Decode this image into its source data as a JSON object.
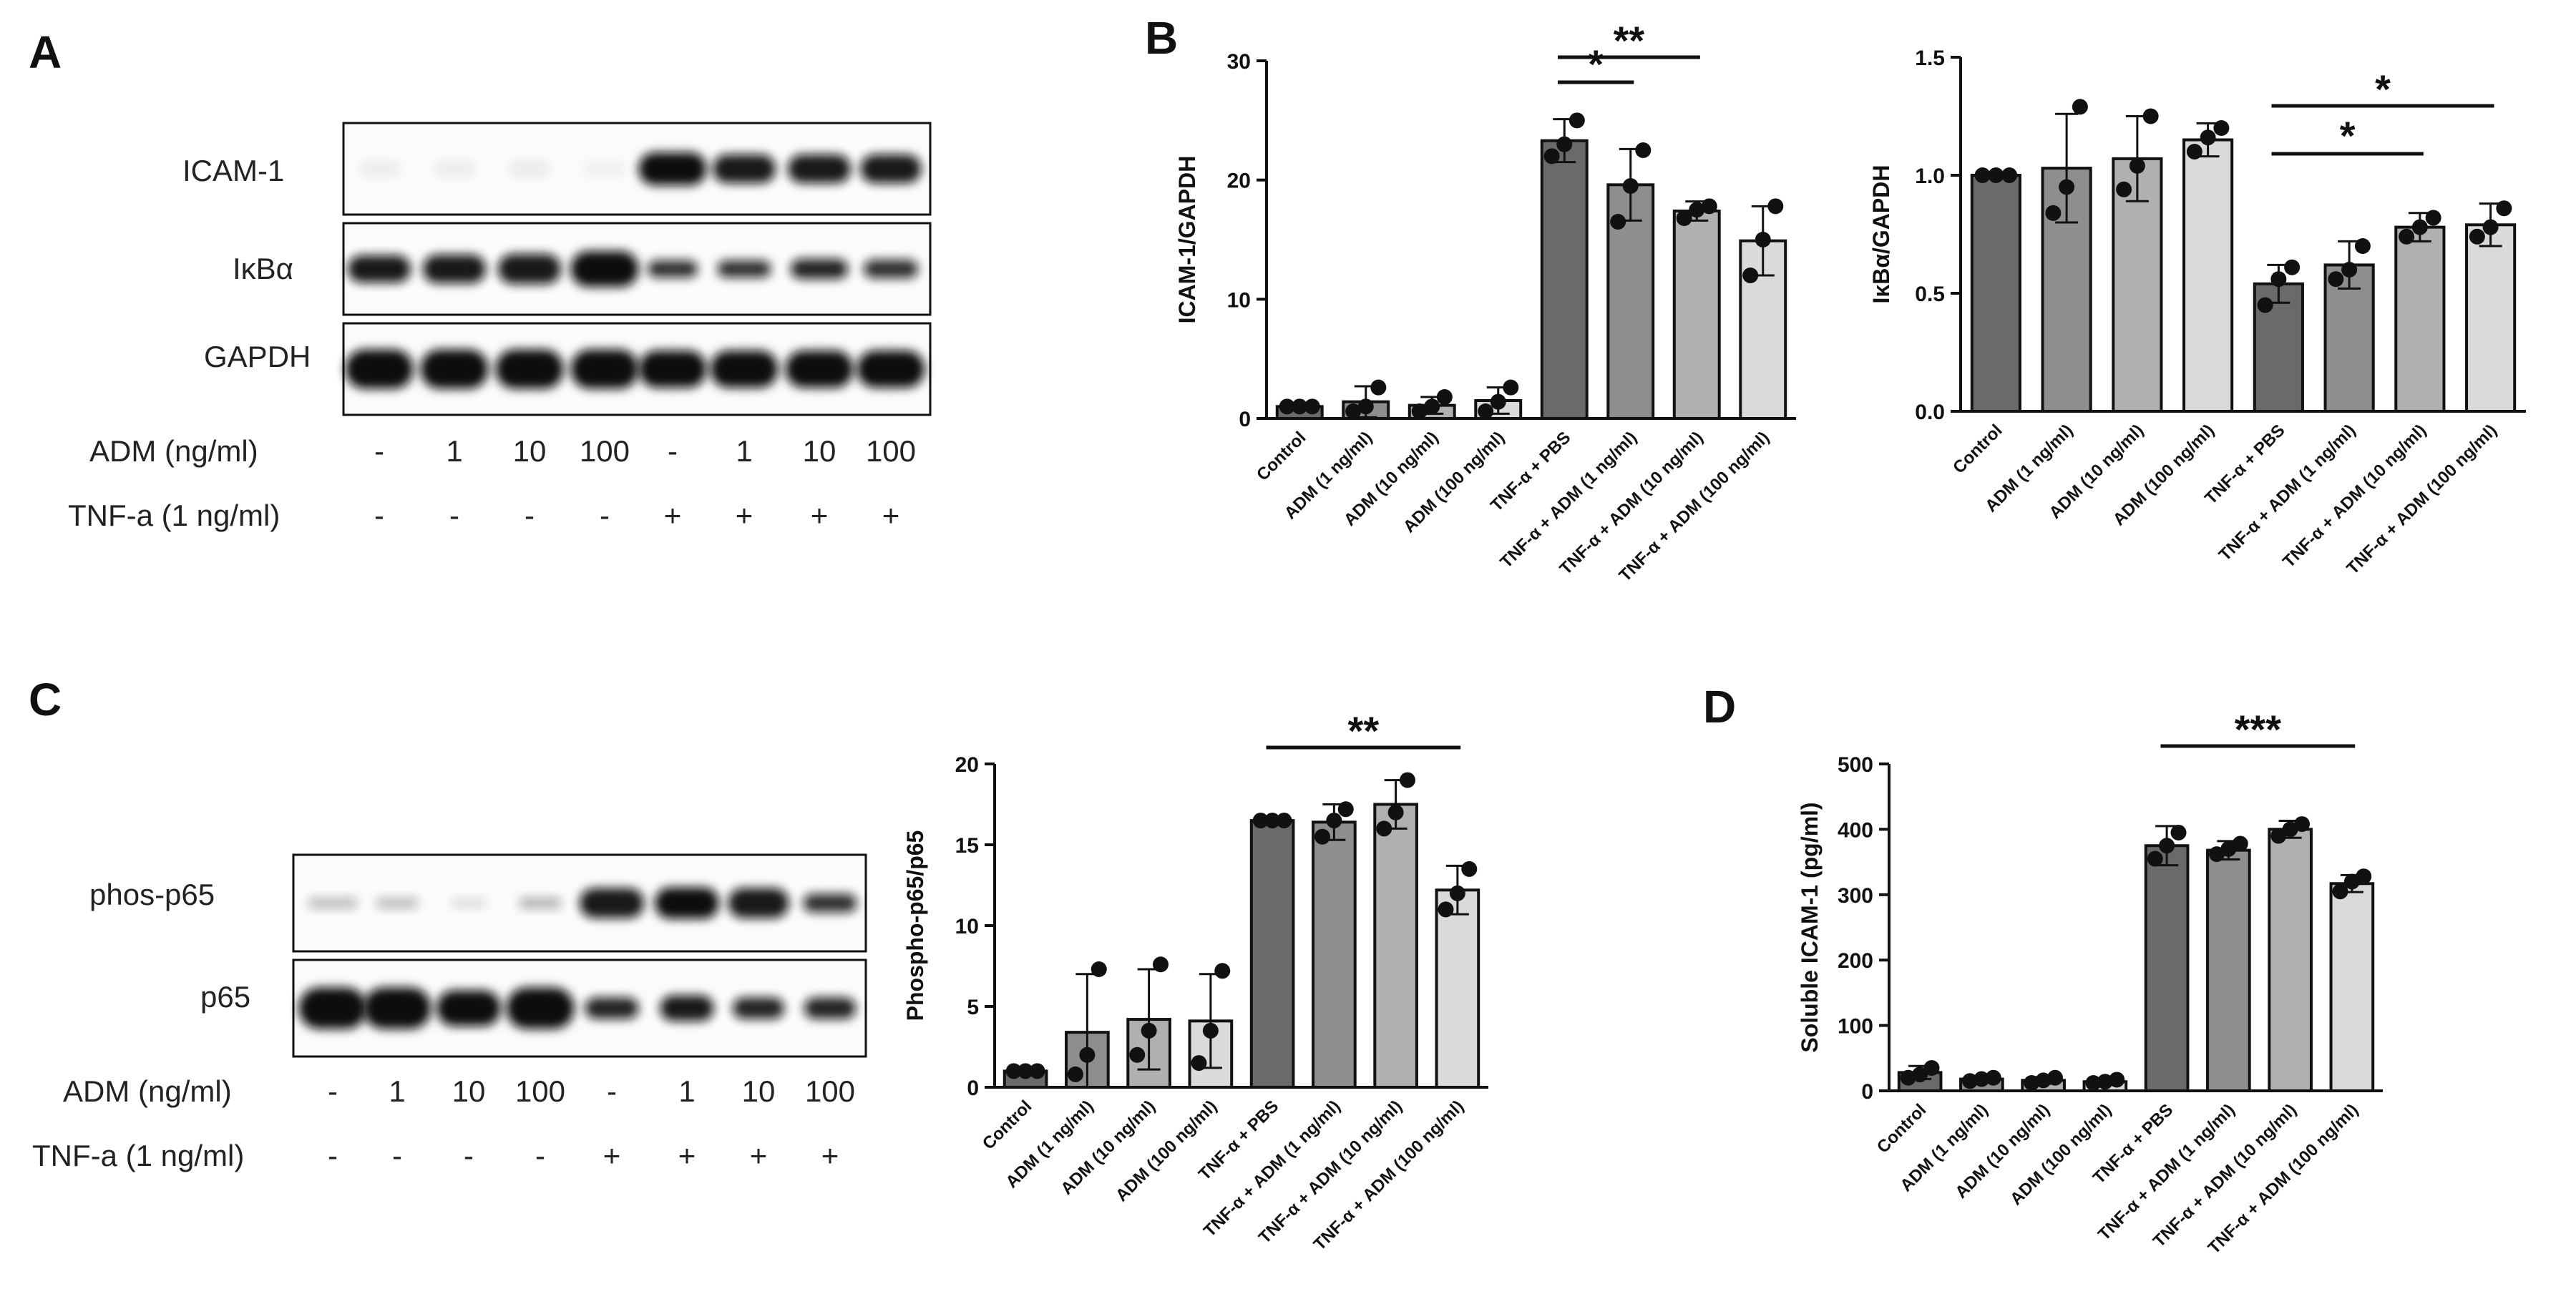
{
  "panels": {
    "A": "A",
    "B": "B",
    "C": "C",
    "D": "D"
  },
  "blots": {
    "A": {
      "bands": [
        "ICAM-1",
        "IκBα",
        "GAPDH"
      ],
      "conditions": [
        {
          "label": "ADM (ng/ml)",
          "values": [
            "-",
            "1",
            "10",
            "100",
            "-",
            "1",
            "10",
            "100"
          ]
        },
        {
          "label": "TNF-a (1 ng/ml)",
          "values": [
            "-",
            "-",
            "-",
            "-",
            "+",
            "+",
            "+",
            "+"
          ]
        }
      ]
    },
    "C": {
      "bands": [
        "phos-p65",
        "p65"
      ],
      "conditions": [
        {
          "label": "ADM (ng/ml)",
          "values": [
            "-",
            "1",
            "10",
            "100",
            "-",
            "1",
            "10",
            "100"
          ]
        },
        {
          "label": "TNF-a (1 ng/ml)",
          "values": [
            "-",
            "-",
            "-",
            "-",
            "+",
            "+",
            "+",
            "+"
          ]
        }
      ]
    }
  },
  "chart_data": [
    {
      "id": "B-left",
      "type": "bar",
      "ylabel": "ICAM-1/GAPDH",
      "ylim": [
        0,
        30
      ],
      "yticks": [
        "0",
        "10",
        "20",
        "30"
      ],
      "categories": [
        "Control",
        "ADM (1 ng/ml)",
        "ADM (10 ng/ml)",
        "ADM (100 ng/ml)",
        "TNF-α + PBS",
        "TNF-α + ADM (1 ng/ml)",
        "TNF-α + ADM (10 ng/ml)",
        "TNF-α + ADM (100 ng/ml)"
      ],
      "values": [
        1.0,
        1.4,
        1.1,
        1.5,
        23.3,
        19.6,
        17.4,
        14.9
      ],
      "errors": [
        0.2,
        1.3,
        0.7,
        1.1,
        1.8,
        3.0,
        0.8,
        2.9
      ],
      "points": [
        [
          1.0,
          1.0,
          1.0
        ],
        [
          0.6,
          1.0,
          2.6
        ],
        [
          0.6,
          1.0,
          1.8
        ],
        [
          0.6,
          1.4,
          2.6
        ],
        [
          22.0,
          23.0,
          25.0
        ],
        [
          16.5,
          19.5,
          22.5
        ],
        [
          16.8,
          17.5,
          17.8
        ],
        [
          12.0,
          15.0,
          17.8
        ]
      ],
      "significance": [
        {
          "from": 4,
          "to": 5,
          "label": "*"
        },
        {
          "from": 4,
          "to": 6,
          "label": "**"
        }
      ]
    },
    {
      "id": "B-right",
      "type": "bar",
      "ylabel": "IκBα/GAPDH",
      "ylim": [
        0,
        1.5
      ],
      "yticks": [
        "0.0",
        "0.5",
        "1.0",
        "1.5"
      ],
      "categories": [
        "Control",
        "ADM (1 ng/ml)",
        "ADM (10 ng/ml)",
        "ADM (100 ng/ml)",
        "TNF-α + PBS",
        "TNF-α + ADM (1 ng/ml)",
        "TNF-α + ADM (10 ng/ml)",
        "TNF-α + ADM (100 ng/ml)"
      ],
      "values": [
        1.0,
        1.03,
        1.07,
        1.15,
        0.54,
        0.62,
        0.78,
        0.79
      ],
      "errors": [
        0.01,
        0.23,
        0.18,
        0.07,
        0.08,
        0.1,
        0.06,
        0.09
      ],
      "points": [
        [
          1.0,
          1.0,
          1.0
        ],
        [
          0.84,
          0.95,
          1.29
        ],
        [
          0.94,
          1.04,
          1.25
        ],
        [
          1.1,
          1.16,
          1.2
        ],
        [
          0.45,
          0.56,
          0.61
        ],
        [
          0.56,
          0.6,
          0.7
        ],
        [
          0.74,
          0.78,
          0.82
        ],
        [
          0.74,
          0.78,
          0.86
        ]
      ],
      "significance": [
        {
          "from": 4,
          "to": 6,
          "label": "*"
        },
        {
          "from": 4,
          "to": 7,
          "label": "*"
        }
      ]
    },
    {
      "id": "C",
      "type": "bar",
      "ylabel": "Phospho-p65/p65",
      "ylim": [
        0,
        20
      ],
      "yticks": [
        "0",
        "5",
        "10",
        "15",
        "20"
      ],
      "categories": [
        "Control",
        "ADM (1 ng/ml)",
        "ADM (10 ng/ml)",
        "ADM (100 ng/ml)",
        "TNF-α + PBS",
        "TNF-α + ADM (1 ng/ml)",
        "TNF-α + ADM (10 ng/ml)",
        "TNF-α + ADM (100 ng/ml)"
      ],
      "values": [
        1.0,
        3.4,
        4.2,
        4.1,
        16.5,
        16.4,
        17.5,
        12.2
      ],
      "errors": [
        0.1,
        3.6,
        3.1,
        2.9,
        0.1,
        1.1,
        1.5,
        1.5
      ],
      "points": [
        [
          1.0,
          1.0,
          1.0
        ],
        [
          0.8,
          2.0,
          7.3
        ],
        [
          2.0,
          3.5,
          7.6
        ],
        [
          1.5,
          3.5,
          7.2
        ],
        [
          16.5,
          16.5,
          16.5
        ],
        [
          15.5,
          16.5,
          17.2
        ],
        [
          16.0,
          17.0,
          19.0
        ],
        [
          11.0,
          12.0,
          13.5
        ]
      ],
      "significance": [
        {
          "from": 4,
          "to": 7,
          "label": "**"
        }
      ]
    },
    {
      "id": "D",
      "type": "bar",
      "ylabel": "Soluble ICAM-1 (pg/ml)",
      "ylim": [
        0,
        500
      ],
      "yticks": [
        "0",
        "100",
        "200",
        "300",
        "400",
        "500"
      ],
      "categories": [
        "Control",
        "ADM (1 ng/ml)",
        "ADM (10 ng/ml)",
        "ADM (100 ng/ml)",
        "TNF-α + PBS",
        "TNF-α + ADM (1 ng/ml)",
        "TNF-α + ADM (10 ng/ml)",
        "TNF-α + ADM (100 ng/ml)"
      ],
      "values": [
        28,
        18,
        16,
        14,
        375,
        368,
        400,
        317
      ],
      "errors": [
        10,
        5,
        5,
        4,
        30,
        14,
        13,
        13
      ],
      "points": [
        [
          20,
          25,
          35
        ],
        [
          15,
          18,
          20
        ],
        [
          12,
          16,
          20
        ],
        [
          12,
          14,
          17
        ],
        [
          355,
          375,
          395
        ],
        [
          362,
          370,
          378
        ],
        [
          390,
          400,
          408
        ],
        [
          305,
          320,
          328
        ]
      ],
      "significance": [
        {
          "from": 4,
          "to": 7,
          "label": "***"
        }
      ]
    }
  ]
}
